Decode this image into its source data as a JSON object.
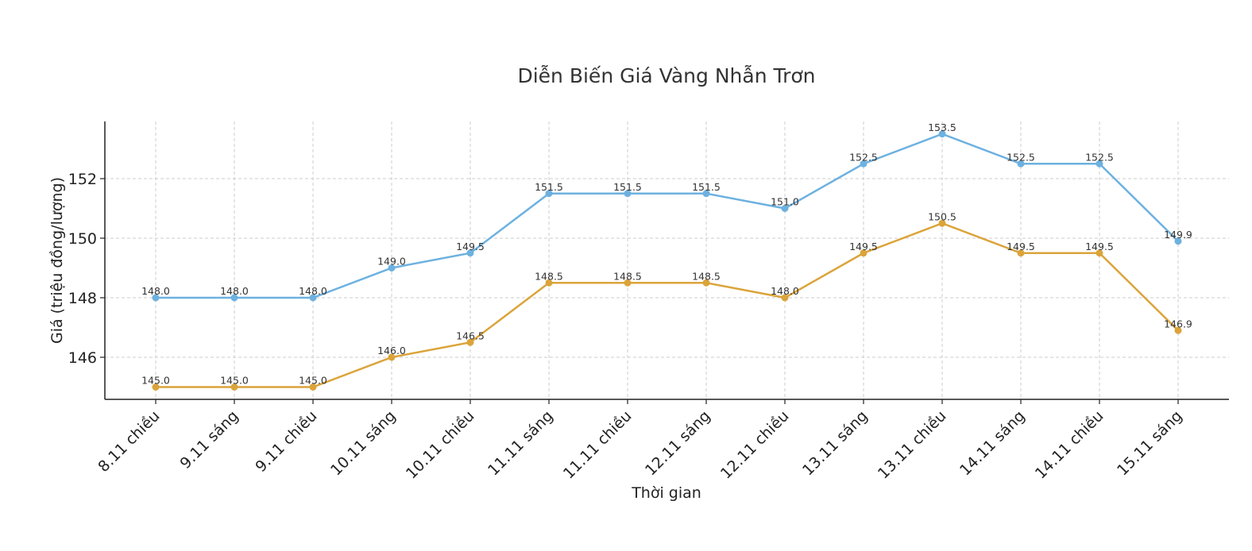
{
  "chart_data": {
    "type": "line",
    "title": "Diễn Biến Giá Vàng Nhẫn Trơn",
    "xlabel": "Thời gian",
    "ylabel": "Giá (triệu đồng/lượng)",
    "categories": [
      "8.11 chiều",
      "9.11 sáng",
      "9.11 chiều",
      "10.11 sáng",
      "10.11 chiều",
      "11.11 sáng",
      "11.11 chiều",
      "12.11 sáng",
      "12.11 chiều",
      "13.11 sáng",
      "13.11 chiều",
      "14.11 sáng",
      "14.11 chiều",
      "15.11 sáng"
    ],
    "series": [
      {
        "color": "#6db1e0",
        "values": [
          148.0,
          148.0,
          148.0,
          149.0,
          149.5,
          151.5,
          151.5,
          151.5,
          151.0,
          152.5,
          153.5,
          152.5,
          152.5,
          149.9
        ]
      },
      {
        "color": "#dba43a",
        "values": [
          145.0,
          145.0,
          145.0,
          146.0,
          146.5,
          148.5,
          148.5,
          148.5,
          148.0,
          149.5,
          150.5,
          149.5,
          149.5,
          146.9
        ]
      }
    ],
    "yticks": [
      146,
      148,
      150,
      152
    ],
    "ylim": [
      144.6,
      153.9
    ],
    "grid": true,
    "data_labels": true
  }
}
